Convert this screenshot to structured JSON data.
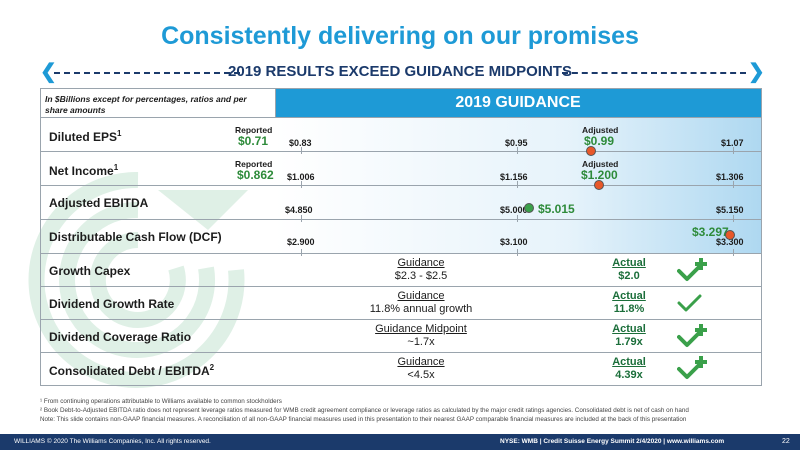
{
  "slide": {
    "title": "Consistently delivering on our promises",
    "subtitle": "2019 RESULTS EXCEED GUIDANCE MIDPOINTS"
  },
  "table": {
    "header_note": "In $Billions except for percentages, ratios and per share amounts",
    "header_title": "2019 GUIDANCE",
    "rows": [
      {
        "label": "Diluted EPS",
        "sup": "1",
        "reported_label": "Reported",
        "reported_value": "$0.71",
        "low": "$0.83",
        "mid": "$0.95",
        "high": "$1.07",
        "adjusted_label": "Adjusted",
        "adjusted_value": "$0.99"
      },
      {
        "label": "Net Income",
        "sup": "1",
        "reported_label": "Reported",
        "reported_value": "$0.862",
        "low": "$1.006",
        "mid": "$1.156",
        "high": "$1.306",
        "adjusted_label": "Adjusted",
        "adjusted_value": "$1.200"
      },
      {
        "label": "Adjusted EBITDA",
        "low": "$4.850",
        "mid": "$5.000",
        "high": "$5.150",
        "actual_value": "$5.015"
      },
      {
        "label": "Distributable Cash Flow (DCF)",
        "low": "$2.900",
        "mid": "$3.100",
        "high": "$3.300",
        "actual_value": "$3.297"
      },
      {
        "label": "Growth Capex",
        "guidance_label": "Guidance",
        "guidance_value": "$2.3 - $2.5",
        "actual_label": "Actual",
        "actual_value": "$2.0"
      },
      {
        "label": "Dividend Growth Rate",
        "guidance_label": "Guidance",
        "guidance_value": "11.8% annual growth",
        "actual_label": "Actual",
        "actual_value": "11.8%"
      },
      {
        "label": "Dividend Coverage Ratio",
        "guidance_label": "Guidance Midpoint",
        "guidance_value": "~1.7x",
        "actual_label": "Actual",
        "actual_value": "1.79x"
      },
      {
        "label": "Consolidated Debt / EBITDA",
        "sup": "2",
        "guidance_label": "Guidance",
        "guidance_value": "<4.5x",
        "actual_label": "Actual",
        "actual_value": "4.39x"
      }
    ]
  },
  "footnotes": {
    "f1": "¹ From continuing operations attributable to Williams available to common stockholders",
    "f2": "² Book Debt-to-Adjusted EBITDA ratio does not represent leverage ratios measured for WMB credit agreement compliance or leverage ratios as calculated by the major credit ratings agencies. Consolidated debt is net of cash on hand",
    "note": "Note: This slide contains non-GAAP financial measures. A reconciliation of all non-GAAP financial measures used in this presentation to their nearest GAAP comparable financial measures are included at the back of this presentation"
  },
  "footer": {
    "left": "WILLIAMS © 2020 The Williams Companies, Inc. All rights reserved.",
    "right": "NYSE: WMB  |  Credit Suisse Energy Summit 2/4/2020  |  www.williams.com",
    "page": "22"
  },
  "colors": {
    "title": "#1e9ad6",
    "navy": "#1b3a6b",
    "marker": "#e8582a",
    "check": "#3aa04a"
  }
}
